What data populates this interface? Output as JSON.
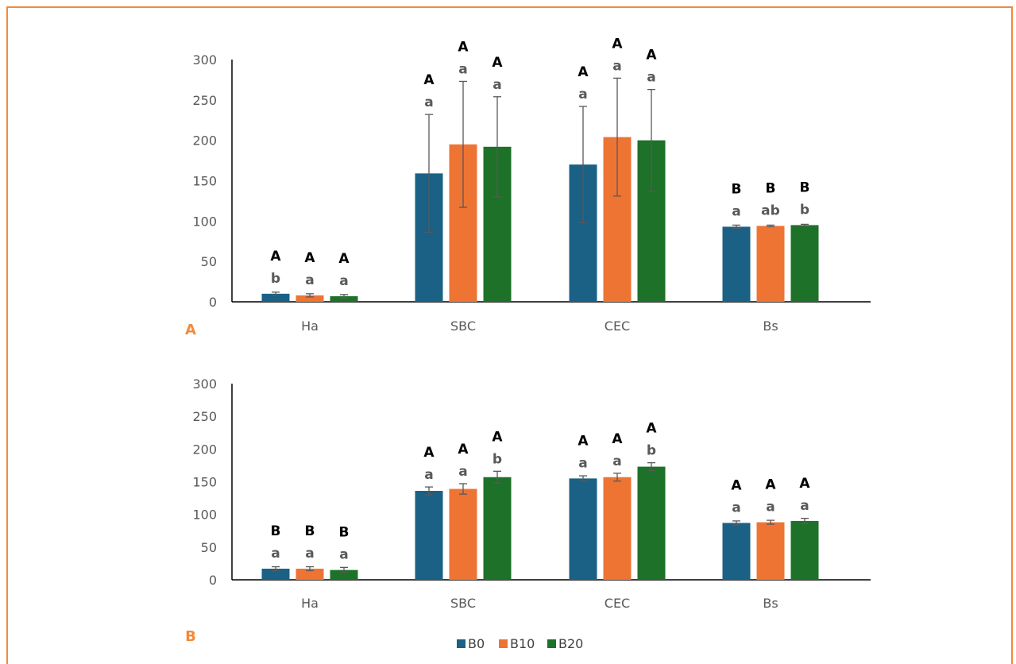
{
  "colors": {
    "B0": "#1a6185",
    "B10": "#ee7434",
    "B20": "#1e7129",
    "axis": "#000000",
    "error": "#595959",
    "panel_label": "#f08a3c",
    "border": "#f08a3c"
  },
  "legend": [
    "B0",
    "B10",
    "B20"
  ],
  "chart_data": [
    {
      "type": "bar",
      "panel_label": "A",
      "categories": [
        "Ha",
        "SBC",
        "CEC",
        "Bs"
      ],
      "ylim": [
        0,
        300
      ],
      "yticks": [
        0,
        50,
        100,
        150,
        200,
        250,
        300
      ],
      "grid": false,
      "series": [
        {
          "name": "B0",
          "values": [
            10,
            159,
            170,
            93
          ],
          "errors": [
            2,
            73,
            72,
            2
          ],
          "upper": [
            "A",
            "A",
            "A",
            "B"
          ],
          "lower": [
            "b",
            "a",
            "a",
            "a"
          ]
        },
        {
          "name": "B10",
          "values": [
            8,
            195,
            204,
            94
          ],
          "errors": [
            2,
            78,
            73,
            1
          ],
          "upper": [
            "A",
            "A",
            "A",
            "B"
          ],
          "lower": [
            "a",
            "a",
            "a",
            "ab"
          ]
        },
        {
          "name": "B20",
          "values": [
            7,
            192,
            200,
            95
          ],
          "errors": [
            2,
            62,
            63,
            1
          ],
          "upper": [
            "A",
            "A",
            "A",
            "B"
          ],
          "lower": [
            "a",
            "a",
            "a",
            "b"
          ]
        }
      ]
    },
    {
      "type": "bar",
      "panel_label": "B",
      "categories": [
        "Ha",
        "SBC",
        "CEC",
        "Bs"
      ],
      "ylim": [
        0,
        300
      ],
      "yticks": [
        0,
        50,
        100,
        150,
        200,
        250,
        300
      ],
      "grid": false,
      "series": [
        {
          "name": "B0",
          "values": [
            17,
            136,
            155,
            87
          ],
          "errors": [
            3,
            6,
            4,
            3
          ],
          "upper": [
            "B",
            "A",
            "A",
            "A"
          ],
          "lower": [
            "a",
            "a",
            "a",
            "a"
          ]
        },
        {
          "name": "B10",
          "values": [
            17,
            139,
            157,
            88
          ],
          "errors": [
            3,
            8,
            6,
            3
          ],
          "upper": [
            "B",
            "A",
            "A",
            "A"
          ],
          "lower": [
            "a",
            "a",
            "a",
            "a"
          ]
        },
        {
          "name": "B20",
          "values": [
            15,
            157,
            173,
            90
          ],
          "errors": [
            4,
            9,
            6,
            4
          ],
          "upper": [
            "B",
            "A",
            "A",
            "A"
          ],
          "lower": [
            "a",
            "b",
            "b",
            "a"
          ]
        }
      ]
    }
  ]
}
